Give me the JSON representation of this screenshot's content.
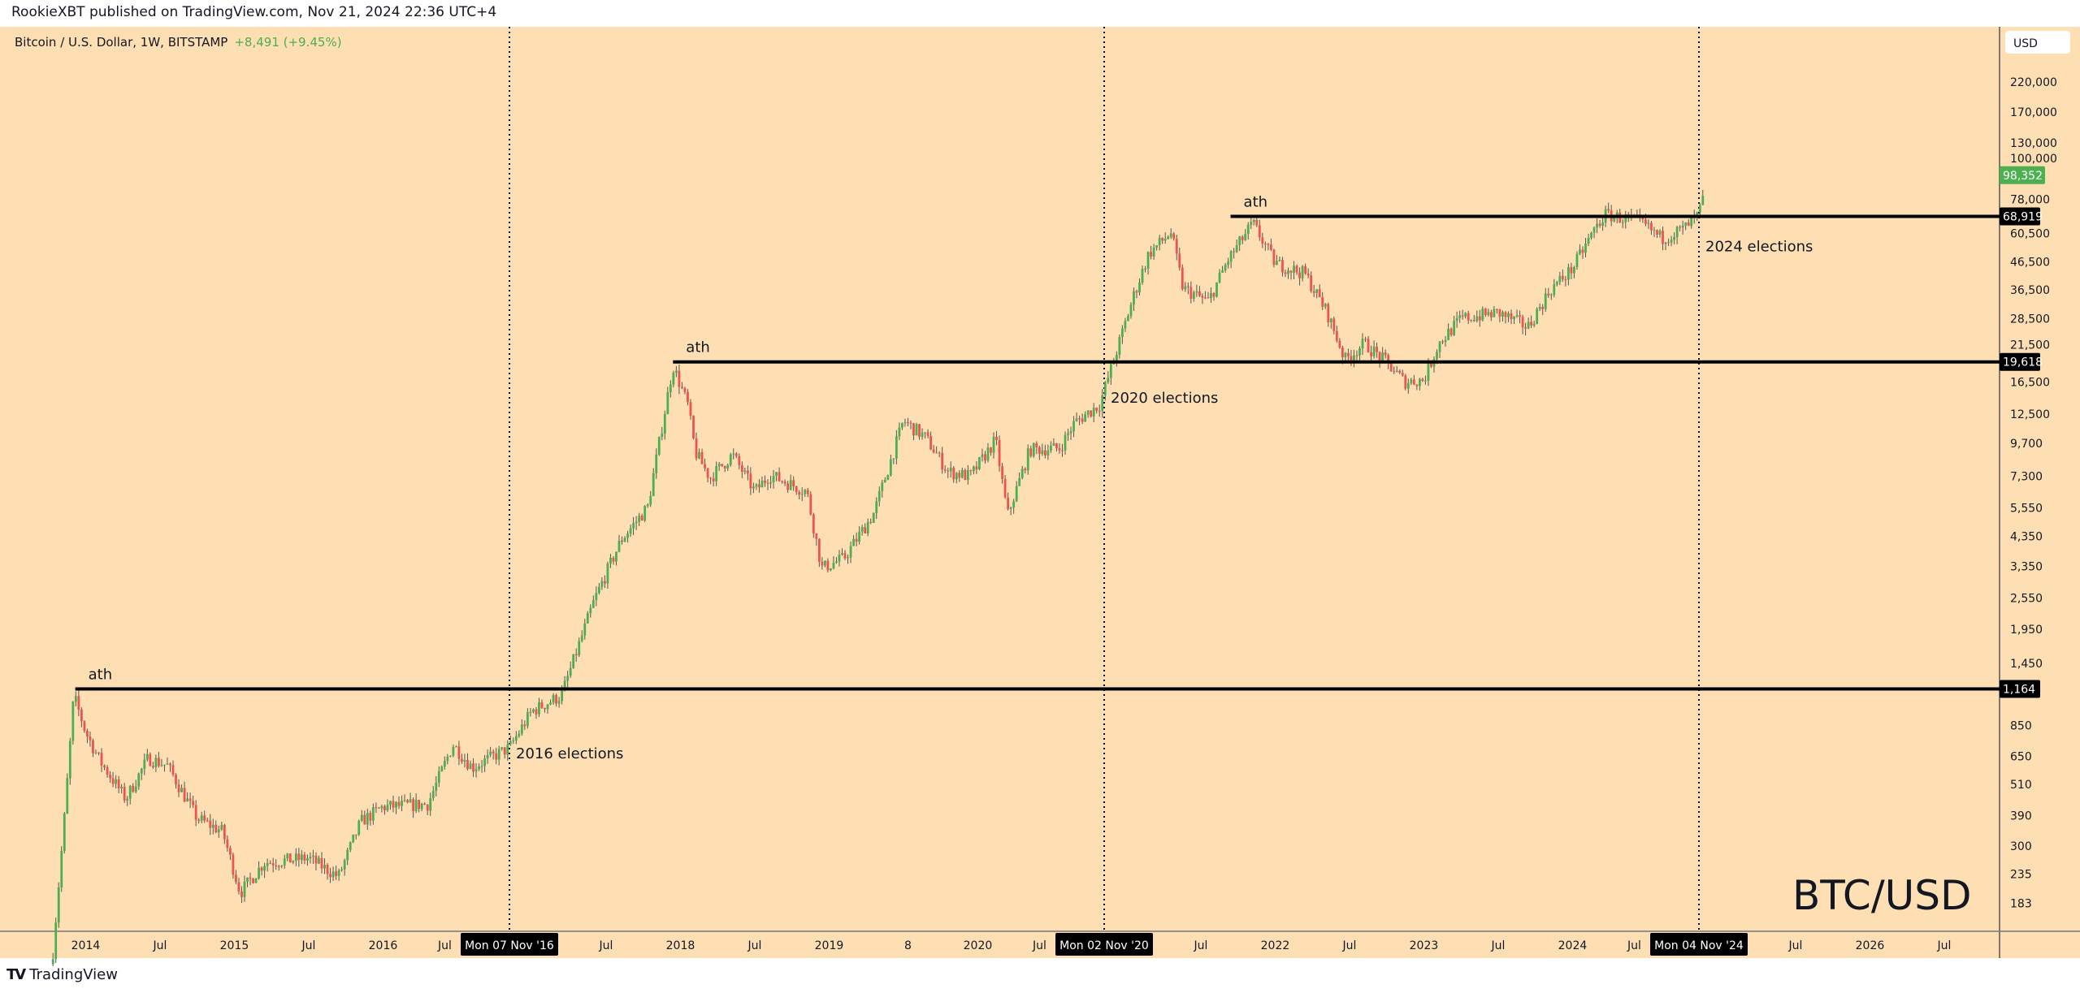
{
  "header": {
    "published": "RookieXBT published on TradingView.com, Nov 21, 2024 22:36 UTC+4",
    "symbol": "Bitcoin / U.S. Dollar, 1W, BITSTAMP",
    "change": "+8,491 (+9.45%)"
  },
  "footer": {
    "brand": "TradingView",
    "logo_icon": "tradingview-logo-icon"
  },
  "price_axis": {
    "currency_button": "USD"
  },
  "colors": {
    "background": "#fddfb3",
    "up": "#4caf50",
    "down": "#ef5350",
    "wick": "#555555",
    "line": "#000000",
    "change_text": "#4caf50"
  },
  "chart_data": {
    "type": "candlestick",
    "title": "BTC/USD",
    "interval": "1W",
    "scale": "log",
    "ylim": [
      150,
      300000
    ],
    "xlim": [
      2013.3,
      2026.9
    ],
    "grid": false,
    "y_ticks": [
      {
        "value": 220000,
        "label": "220,000"
      },
      {
        "value": 170000,
        "label": "170,000"
      },
      {
        "value": 130000,
        "label": "130,000"
      },
      {
        "value": 100000,
        "label": "100,000"
      },
      {
        "value": 78000,
        "label": "78,000"
      },
      {
        "value": 60500,
        "label": "60,500"
      },
      {
        "value": 46500,
        "label": "46,500"
      },
      {
        "value": 36500,
        "label": "36,500"
      },
      {
        "value": 28500,
        "label": "28,500"
      },
      {
        "value": 21500,
        "label": "21,500"
      },
      {
        "value": 16500,
        "label": "16,500"
      },
      {
        "value": 12500,
        "label": "12,500"
      },
      {
        "value": 9700,
        "label": "9,700"
      },
      {
        "value": 7300,
        "label": "7,300"
      },
      {
        "value": 5550,
        "label": "5,550"
      },
      {
        "value": 4350,
        "label": "4,350"
      },
      {
        "value": 3350,
        "label": "3,350"
      },
      {
        "value": 2550,
        "label": "2,550"
      },
      {
        "value": 1950,
        "label": "1,950"
      },
      {
        "value": 1450,
        "label": "1,450"
      },
      {
        "value": 850,
        "label": "850"
      },
      {
        "value": 650,
        "label": "650"
      },
      {
        "value": 510,
        "label": "510"
      },
      {
        "value": 390,
        "label": "390"
      },
      {
        "value": 300,
        "label": "300"
      },
      {
        "value": 235,
        "label": "235"
      },
      {
        "value": 183,
        "label": "183"
      }
    ],
    "x_ticks": [
      {
        "t": 2013.32,
        "label": "8"
      },
      {
        "t": 2014.0,
        "label": "2014"
      },
      {
        "t": 2014.5,
        "label": "Jul"
      },
      {
        "t": 2015.0,
        "label": "2015"
      },
      {
        "t": 2015.5,
        "label": "Jul"
      },
      {
        "t": 2016.0,
        "label": "2016"
      },
      {
        "t": 2016.5,
        "label": "Jul"
      },
      {
        "t": 2017.5,
        "label": "Jul"
      },
      {
        "t": 2018.0,
        "label": "2018"
      },
      {
        "t": 2018.5,
        "label": "Jul"
      },
      {
        "t": 2019.0,
        "label": "2019"
      },
      {
        "t": 2019.53,
        "label": "8"
      },
      {
        "t": 2020.0,
        "label": "2020"
      },
      {
        "t": 2020.5,
        "label": "Jul"
      },
      {
        "t": 2021.5,
        "label": "Jul"
      },
      {
        "t": 2022.0,
        "label": "2022"
      },
      {
        "t": 2022.5,
        "label": "Jul"
      },
      {
        "t": 2023.0,
        "label": "2023"
      },
      {
        "t": 2023.5,
        "label": "Jul"
      },
      {
        "t": 2024.0,
        "label": "2024"
      },
      {
        "t": 2024.5,
        "label": "Jul"
      },
      {
        "t": 2025.5,
        "label": "Jul"
      },
      {
        "t": 2026.0,
        "label": "2026"
      },
      {
        "t": 2026.5,
        "label": "Jul"
      }
    ],
    "last_price": {
      "value": 98352,
      "label": "98,352"
    },
    "horizontal_levels": [
      {
        "value": 1164,
        "label": "1,164",
        "from_t": 2013.93,
        "note": "ath"
      },
      {
        "value": 19618,
        "label": "19,618",
        "from_t": 2017.95,
        "note": "ath"
      },
      {
        "value": 68919,
        "label": "68,919",
        "from_t": 2021.7,
        "note": "ath"
      }
    ],
    "vertical_markers": [
      {
        "t": 2016.85,
        "date_label": "Mon 07 Nov '16",
        "note": "2016 elections",
        "note_price": 640
      },
      {
        "t": 2020.85,
        "date_label": "Mon 02 Nov '20",
        "note": "2020 elections",
        "note_price": 13800
      },
      {
        "t": 2024.85,
        "date_label": "Mon 04 Nov '24",
        "note": "2024 elections",
        "note_price": 51000
      }
    ],
    "price_path": [
      [
        2013.78,
        120
      ],
      [
        2013.86,
        400
      ],
      [
        2013.92,
        1100
      ],
      [
        2014.0,
        800
      ],
      [
        2014.1,
        620
      ],
      [
        2014.27,
        450
      ],
      [
        2014.42,
        640
      ],
      [
        2014.55,
        600
      ],
      [
        2014.75,
        380
      ],
      [
        2014.92,
        340
      ],
      [
        2015.04,
        200
      ],
      [
        2015.2,
        260
      ],
      [
        2015.5,
        270
      ],
      [
        2015.7,
        230
      ],
      [
        2015.85,
        370
      ],
      [
        2016.0,
        420
      ],
      [
        2016.3,
        430
      ],
      [
        2016.47,
        720
      ],
      [
        2016.6,
        590
      ],
      [
        2016.85,
        700
      ],
      [
        2017.0,
        960
      ],
      [
        2017.2,
        1100
      ],
      [
        2017.42,
        2500
      ],
      [
        2017.6,
        4200
      ],
      [
        2017.78,
        5600
      ],
      [
        2017.95,
        19000
      ],
      [
        2018.05,
        13500
      ],
      [
        2018.1,
        9000
      ],
      [
        2018.2,
        7200
      ],
      [
        2018.35,
        8800
      ],
      [
        2018.5,
        6400
      ],
      [
        2018.6,
        7400
      ],
      [
        2018.85,
        6400
      ],
      [
        2018.95,
        3300
      ],
      [
        2019.1,
        3600
      ],
      [
        2019.3,
        5300
      ],
      [
        2019.5,
        11800
      ],
      [
        2019.65,
        10200
      ],
      [
        2019.8,
        7600
      ],
      [
        2019.95,
        7300
      ],
      [
        2020.12,
        10000
      ],
      [
        2020.2,
        5200
      ],
      [
        2020.35,
        9200
      ],
      [
        2020.55,
        9300
      ],
      [
        2020.65,
        11600
      ],
      [
        2020.82,
        13600
      ],
      [
        2020.95,
        23000
      ],
      [
        2021.05,
        35000
      ],
      [
        2021.15,
        50000
      ],
      [
        2021.3,
        60000
      ],
      [
        2021.38,
        37000
      ],
      [
        2021.55,
        33000
      ],
      [
        2021.68,
        47000
      ],
      [
        2021.85,
        65000
      ],
      [
        2022.0,
        46000
      ],
      [
        2022.2,
        42000
      ],
      [
        2022.35,
        30000
      ],
      [
        2022.47,
        20000
      ],
      [
        2022.6,
        23000
      ],
      [
        2022.75,
        19500
      ],
      [
        2022.87,
        16500
      ],
      [
        2023.0,
        16800
      ],
      [
        2023.1,
        23000
      ],
      [
        2023.25,
        28500
      ],
      [
        2023.5,
        30000
      ],
      [
        2023.7,
        26500
      ],
      [
        2023.85,
        36500
      ],
      [
        2024.0,
        44000
      ],
      [
        2024.15,
        62000
      ],
      [
        2024.22,
        70000
      ],
      [
        2024.45,
        66000
      ],
      [
        2024.6,
        57000
      ],
      [
        2024.75,
        62000
      ],
      [
        2024.84,
        69000
      ],
      [
        2024.87,
        76000
      ],
      [
        2024.89,
        98352
      ]
    ]
  }
}
